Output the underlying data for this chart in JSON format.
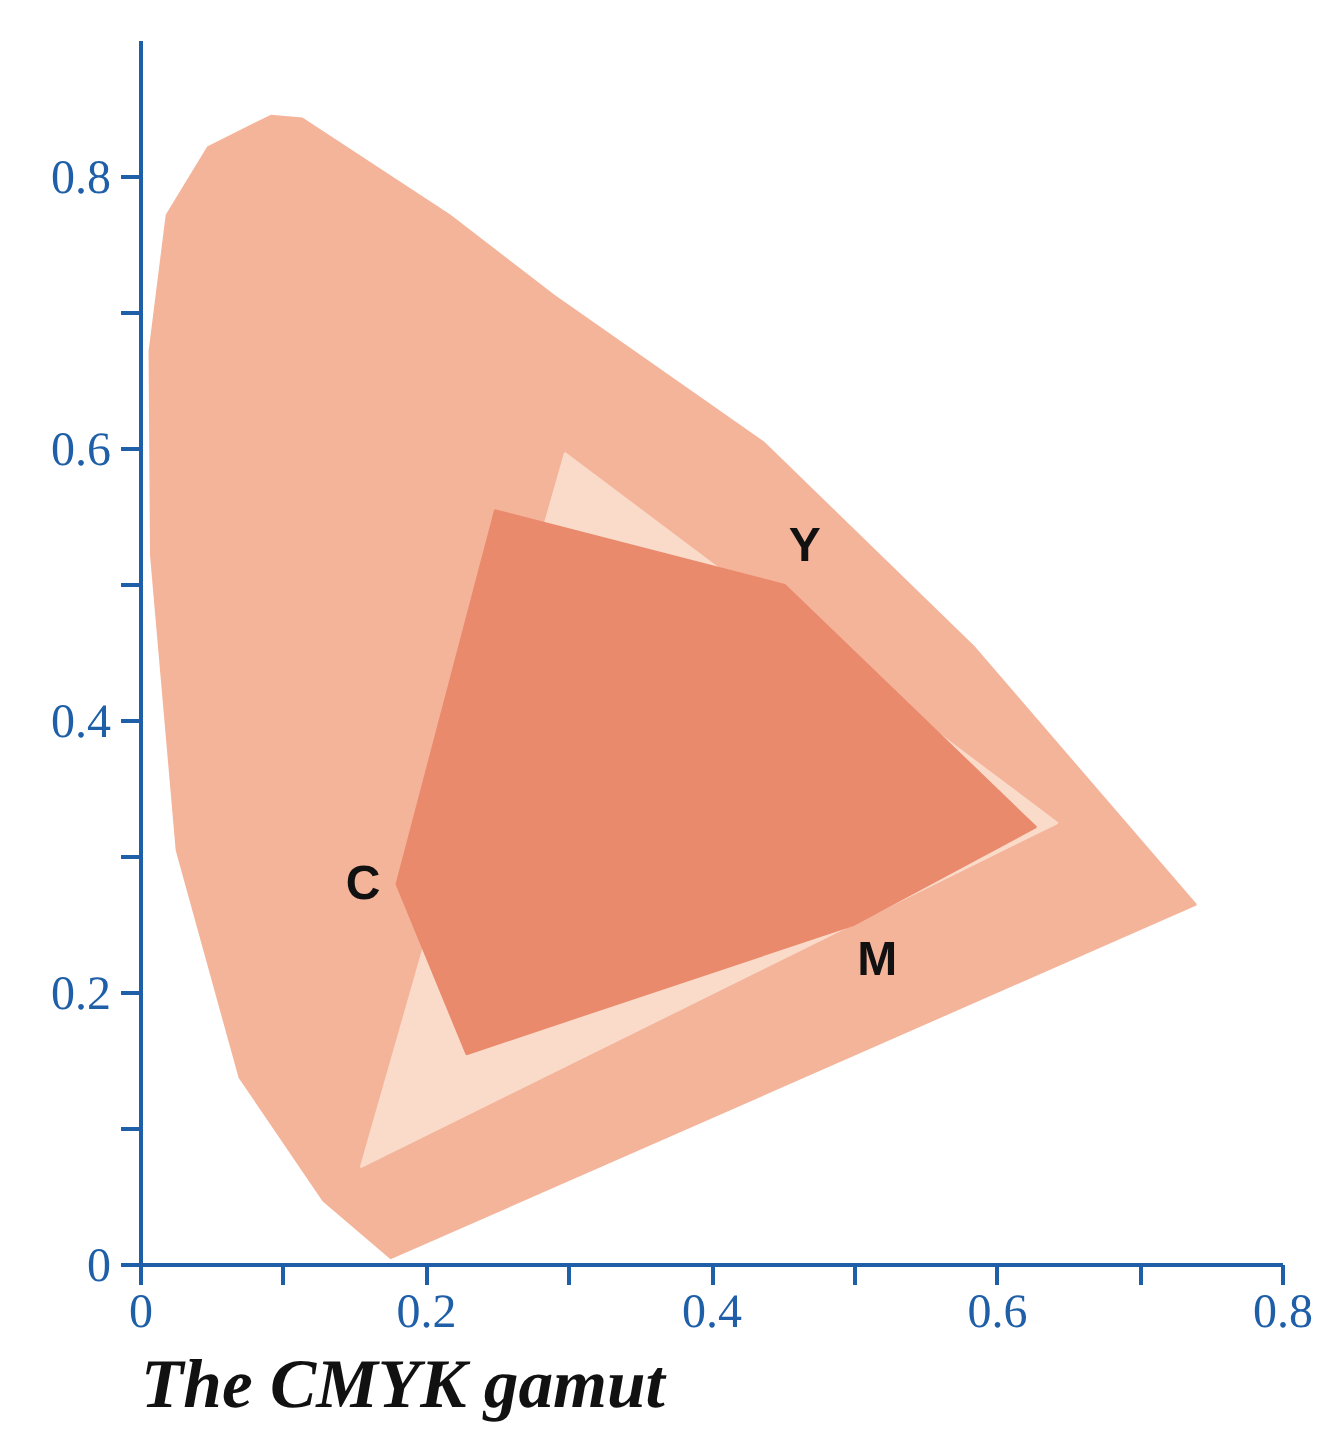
{
  "chart_data": {
    "type": "area",
    "title": "The CMYK gamut",
    "series": [
      {
        "color": "#f4b49a",
        "x": [
          0.175,
          0.128,
          0.069,
          0.025,
          0.007,
          0.006,
          0.018,
          0.047,
          0.091,
          0.113,
          0.216,
          0.289,
          0.436,
          0.583,
          0.739
        ],
        "values": [
          0.005,
          0.047,
          0.138,
          0.305,
          0.522,
          0.672,
          0.772,
          0.822,
          0.845,
          0.843,
          0.772,
          0.713,
          0.605,
          0.455,
          0.265
        ]
      },
      {
        "color": "#fadbc9",
        "x": [
          0.154,
          0.297,
          0.642
        ],
        "values": [
          0.072,
          0.597,
          0.325
        ]
      },
      {
        "color": "#ea8a6d",
        "x": [
          0.179,
          0.248,
          0.451,
          0.627,
          0.499,
          0.228
        ],
        "values": [
          0.28,
          0.555,
          0.5,
          0.322,
          0.25,
          0.155
        ]
      }
    ],
    "annotations": [
      {
        "text": "C",
        "x": 0.179,
        "y": 0.28
      },
      {
        "text": "Y",
        "x": 0.451,
        "y": 0.5
      },
      {
        "text": "M",
        "x": 0.499,
        "y": 0.25
      }
    ],
    "xlim": [
      0,
      0.8
    ],
    "ylim": [
      0,
      0.9
    ],
    "xticks": [
      0,
      {
        "value": 0.1,
        "label": null
      },
      0.2,
      {
        "value": 0.3,
        "label": null
      },
      0.4,
      {
        "value": 0.5,
        "label": null
      },
      0.6,
      {
        "value": 0.7,
        "label": null
      },
      0.8
    ],
    "yticks": [
      0,
      {
        "value": 0.1,
        "label": null
      },
      0.2,
      {
        "value": 0.3,
        "label": null
      },
      0.4,
      {
        "value": 0.5,
        "label": null
      },
      0.6,
      {
        "value": 0.7,
        "label": null
      },
      0.8
    ],
    "grid": false
  }
}
